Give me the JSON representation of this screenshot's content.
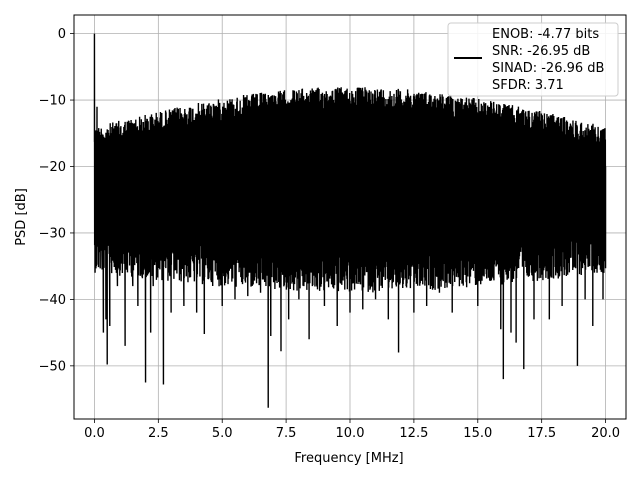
{
  "chart_data": {
    "type": "line",
    "title": "",
    "xlabel": "Frequency [MHz]",
    "ylabel": "PSD [dB]",
    "xlim": [
      -0.8,
      20.8
    ],
    "ylim": [
      -58.0,
      2.8
    ],
    "xticks": [
      0.0,
      2.5,
      5.0,
      7.5,
      10.0,
      12.5,
      15.0,
      17.5,
      20.0
    ],
    "xtick_labels": [
      "0.0",
      "2.5",
      "5.0",
      "7.5",
      "10.0",
      "12.5",
      "15.0",
      "17.5",
      "20.0"
    ],
    "yticks": [
      0,
      -10,
      -20,
      -30,
      -40,
      -50
    ],
    "ytick_labels": [
      "0",
      "−10",
      "−20",
      "−30",
      "−40",
      "−50"
    ],
    "grid": true,
    "legend_position": "top-right",
    "legend_lines": [
      "ENOB: -4.77 bits",
      "SNR: -26.95 dB",
      "SINAD: -26.96 dB",
      "SFDR: 3.71"
    ],
    "series": [
      {
        "color": "#000000",
        "x_range": [
          0.0,
          20.0
        ],
        "approximate_band": {
          "upper_db": [
            -14,
            -8
          ],
          "lower_db": [
            -40,
            -30
          ]
        },
        "points": [
          [
            0.0,
            0.0
          ],
          [
            0.05,
            -34.0
          ],
          [
            0.1,
            -11.0
          ],
          [
            0.3,
            -35.5
          ],
          [
            0.35,
            -45.0
          ],
          [
            0.45,
            -43.0
          ],
          [
            0.5,
            -49.8
          ],
          [
            0.6,
            -44.0
          ],
          [
            0.9,
            -38.0
          ],
          [
            1.2,
            -47.0
          ],
          [
            1.5,
            -38.0
          ],
          [
            1.7,
            -41.0
          ],
          [
            2.0,
            -52.5
          ],
          [
            2.2,
            -45.0
          ],
          [
            2.3,
            -38.0
          ],
          [
            2.7,
            -52.8
          ],
          [
            3.0,
            -42.0
          ],
          [
            3.5,
            -41.0
          ],
          [
            4.0,
            -42.0
          ],
          [
            4.3,
            -45.2
          ],
          [
            5.0,
            -41.0
          ],
          [
            5.5,
            -40.0
          ],
          [
            6.0,
            -39.5
          ],
          [
            6.5,
            -39.0
          ],
          [
            6.8,
            -56.3
          ],
          [
            6.9,
            -45.5
          ],
          [
            7.3,
            -47.8
          ],
          [
            7.6,
            -43.0
          ],
          [
            8.0,
            -40.0
          ],
          [
            8.4,
            -46.0
          ],
          [
            9.0,
            -41.0
          ],
          [
            9.5,
            -44.0
          ],
          [
            10.0,
            -42.0
          ],
          [
            10.5,
            -41.5
          ],
          [
            11.0,
            -40.0
          ],
          [
            11.5,
            -43.0
          ],
          [
            11.9,
            -48.0
          ],
          [
            12.5,
            -42.0
          ],
          [
            13.0,
            -41.0
          ],
          [
            13.5,
            -39.0
          ],
          [
            14.0,
            -42.0
          ],
          [
            15.0,
            -41.0
          ],
          [
            15.9,
            -44.5
          ],
          [
            16.0,
            -52.0
          ],
          [
            16.3,
            -45.0
          ],
          [
            16.5,
            -46.5
          ],
          [
            16.8,
            -50.5
          ],
          [
            17.2,
            -43.0
          ],
          [
            17.8,
            -43.0
          ],
          [
            18.3,
            -41.0
          ],
          [
            18.9,
            -50.0
          ],
          [
            19.2,
            -40.0
          ],
          [
            19.5,
            -44.0
          ],
          [
            19.9,
            -40.0
          ],
          [
            20.0,
            -20.0
          ]
        ]
      }
    ]
  }
}
